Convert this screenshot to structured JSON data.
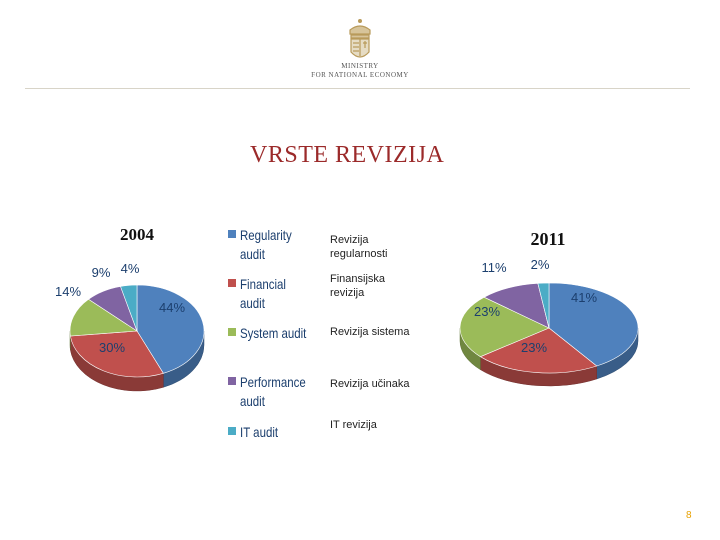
{
  "header": {
    "logo_line_1": "MINISTRY",
    "logo_line_2": "FOR NATIONAL ECONOMY"
  },
  "slide": {
    "title": "VRSTE REVIZIJA",
    "page_number": "8"
  },
  "legend": {
    "items": [
      {
        "label": "Regularity audit",
        "color": "#4f81bd"
      },
      {
        "label": "Financial audit",
        "color": "#c0504d"
      },
      {
        "label": "System audit",
        "color": "#9bbb59"
      },
      {
        "label": "Performance audit",
        "color": "#8064a2"
      },
      {
        "label": "IT audit",
        "color": "#4bacc6"
      }
    ]
  },
  "translations": [
    "Revizija regularnosti",
    "Finansijska revizija",
    "Revizija sistema",
    "Revizija učinaka",
    "IT revizija"
  ],
  "chart_data": [
    {
      "type": "pie",
      "title": "2004",
      "categories": [
        "Regularity audit",
        "Financial audit",
        "System audit",
        "Performance audit",
        "IT audit"
      ],
      "values": [
        44,
        30,
        14,
        9,
        4
      ],
      "labels": [
        "44%",
        "30%",
        "14%",
        "9%",
        "4%"
      ],
      "colors": [
        "#4f81bd",
        "#c0504d",
        "#9bbb59",
        "#8064a2",
        "#4bacc6"
      ]
    },
    {
      "type": "pie",
      "title": "2011",
      "categories": [
        "Regularity audit",
        "Financial audit",
        "System audit",
        "Performance audit",
        "IT audit"
      ],
      "values": [
        41,
        23,
        23,
        11,
        2
      ],
      "labels": [
        "41%",
        "23%",
        "23%",
        "11%",
        "2%"
      ],
      "colors": [
        "#4f81bd",
        "#c0504d",
        "#9bbb59",
        "#8064a2",
        "#4bacc6"
      ]
    }
  ]
}
